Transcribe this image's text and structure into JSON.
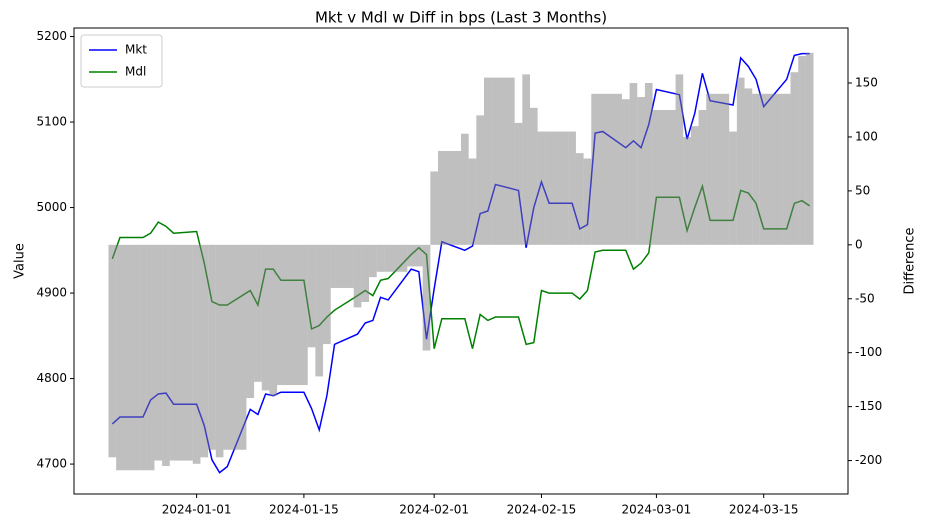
{
  "chart_data": {
    "type": "line",
    "title": "Mkt v Mdl w Diff in bps (Last 3 Months)",
    "ylabel": "Value",
    "y2label": "Difference",
    "x": [
      "2023-12-21",
      "2023-12-22",
      "2023-12-25",
      "2023-12-26",
      "2023-12-27",
      "2023-12-28",
      "2023-12-29",
      "2024-01-01",
      "2024-01-02",
      "2024-01-03",
      "2024-01-04",
      "2024-01-05",
      "2024-01-08",
      "2024-01-09",
      "2024-01-10",
      "2024-01-11",
      "2024-01-12",
      "2024-01-15",
      "2024-01-16",
      "2024-01-17",
      "2024-01-18",
      "2024-01-19",
      "2024-01-22",
      "2024-01-23",
      "2024-01-24",
      "2024-01-25",
      "2024-01-26",
      "2024-01-29",
      "2024-01-30",
      "2024-01-31",
      "2024-02-01",
      "2024-02-02",
      "2024-02-05",
      "2024-02-06",
      "2024-02-07",
      "2024-02-08",
      "2024-02-09",
      "2024-02-12",
      "2024-02-13",
      "2024-02-14",
      "2024-02-15",
      "2024-02-16",
      "2024-02-19",
      "2024-02-20",
      "2024-02-21",
      "2024-02-22",
      "2024-02-23",
      "2024-02-26",
      "2024-02-27",
      "2024-02-28",
      "2024-02-29",
      "2024-03-01",
      "2024-03-04",
      "2024-03-05",
      "2024-03-06",
      "2024-03-07",
      "2024-03-08",
      "2024-03-11",
      "2024-03-12",
      "2024-03-13",
      "2024-03-14",
      "2024-03-15",
      "2024-03-18",
      "2024-03-19",
      "2024-03-20",
      "2024-03-21"
    ],
    "series": [
      {
        "name": "Mkt",
        "color": "#0000ff",
        "values": [
          4747,
          4755,
          4755,
          4775,
          4782,
          4783,
          4770,
          4770,
          4745,
          4705,
          4690,
          4697,
          4764,
          4758,
          4782,
          4780,
          4784,
          4784,
          4765,
          4740,
          4780,
          4840,
          4852,
          4865,
          4868,
          4895,
          4892,
          4928,
          4925,
          4846,
          4905,
          4960,
          4950,
          4955,
          4993,
          4996,
          5027,
          5020,
          4953,
          5000,
          5030,
          5005,
          5005,
          4975,
          4980,
          5087,
          5089,
          5070,
          5078,
          5070,
          5097,
          5138,
          5132,
          5080,
          5110,
          5157,
          5125,
          5120,
          5175,
          5165,
          5150,
          5118,
          5150,
          5178,
          5180,
          5180
        ]
      },
      {
        "name": "Mdl",
        "color": "#008000",
        "values": [
          4940,
          4965,
          4965,
          4970,
          4983,
          4978,
          4970,
          4972,
          4935,
          4890,
          4886,
          4886,
          4903,
          4886,
          4928,
          4928,
          4915,
          4915,
          4858,
          4862,
          4872,
          4880,
          4897,
          4903,
          4897,
          4915,
          4917,
          4945,
          4953,
          4945,
          4835,
          4870,
          4870,
          4835,
          4875,
          4868,
          4872,
          4872,
          4840,
          4842,
          4903,
          4900,
          4900,
          4893,
          4903,
          4948,
          4950,
          4950,
          4928,
          4935,
          4947,
          5012,
          5012,
          4973,
          5000,
          5025,
          4985,
          4985,
          5020,
          5017,
          5005,
          4975,
          4975,
          5005,
          5008,
          5002
        ]
      },
      {
        "type": "bar",
        "axis": "y2",
        "color": "#808080",
        "values": [
          -197,
          -209,
          -209,
          -209,
          -200,
          -205,
          -200,
          -203,
          -197,
          -190,
          -197,
          -190,
          -142,
          -127,
          -135,
          -140,
          -130,
          -130,
          -95,
          -122,
          -92,
          -40,
          -58,
          -53,
          -30,
          -25,
          -25,
          -20,
          -20,
          -98,
          68,
          87,
          103,
          80,
          120,
          155,
          155,
          113,
          158,
          127,
          105,
          105,
          105,
          85,
          80,
          140,
          140,
          135,
          150,
          137,
          150,
          125,
          158,
          100,
          110,
          125,
          140,
          105,
          155,
          145,
          140,
          140,
          140,
          160,
          175,
          178
        ]
      }
    ],
    "xlim": [
      "2023-12-16",
      "2024-03-26"
    ],
    "xticks": [
      "2024-01-01",
      "2024-01-15",
      "2024-02-01",
      "2024-02-15",
      "2024-03-01",
      "2024-03-15"
    ],
    "ylim": [
      4665,
      5210
    ],
    "yticks": [
      4700,
      4800,
      4900,
      5000,
      5100,
      5200
    ],
    "y2lim": [
      -231,
      201
    ],
    "y2ticks": [
      -200,
      -150,
      -100,
      -50,
      0,
      50,
      100,
      150
    ],
    "legend": "upper left"
  }
}
